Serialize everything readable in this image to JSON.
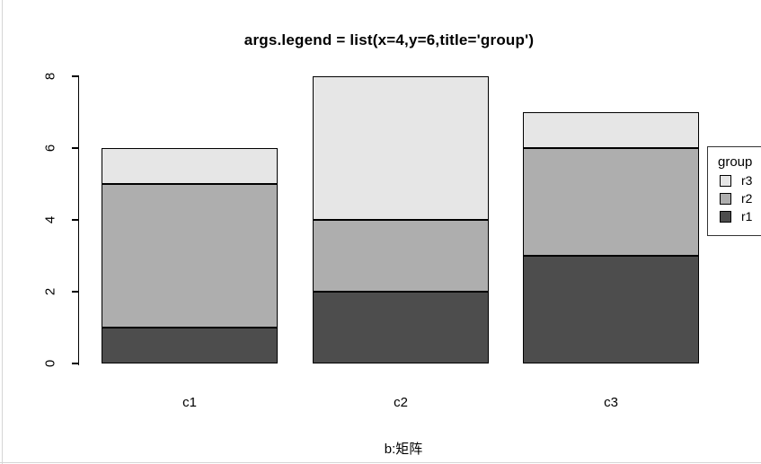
{
  "frame": {
    "left_border_color": "#d6d6d6",
    "bottom_border_color": "#d6d6d6",
    "background": "#ffffff"
  },
  "chart_data": {
    "type": "bar",
    "stacked": true,
    "title": "args.legend = list(x=4,y=6,title='group')",
    "caption": "b:矩阵",
    "categories": [
      "c1",
      "c2",
      "c3"
    ],
    "series": [
      {
        "name": "r1",
        "color": "#4D4D4D",
        "values": [
          1,
          2,
          3
        ]
      },
      {
        "name": "r2",
        "color": "#AEAEAE",
        "values": [
          4,
          2,
          3
        ]
      },
      {
        "name": "r3",
        "color": "#E6E6E6",
        "values": [
          1,
          4,
          1
        ]
      }
    ],
    "totals": [
      6,
      8,
      7
    ],
    "ylim": [
      0,
      8
    ],
    "yticks": [
      0,
      2,
      4,
      6,
      8
    ],
    "grid": false,
    "bar_border_color": "#000000",
    "axis_color": "#000000",
    "legend": {
      "title": "group",
      "position": "right",
      "entries": [
        "r3",
        "r2",
        "r1"
      ]
    }
  }
}
